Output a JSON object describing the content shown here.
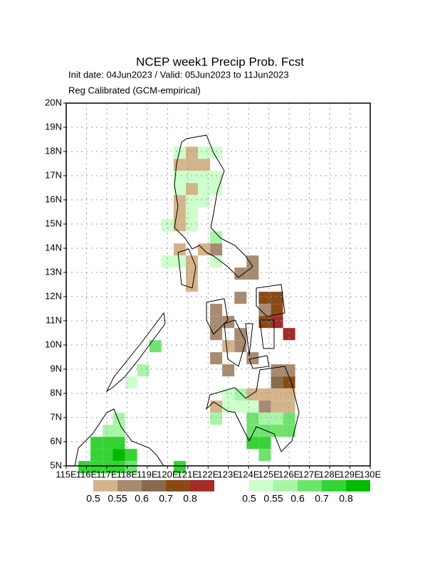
{
  "chart_data": {
    "type": "grid-map",
    "title": "NCEP week1 Precip Prob. Fcst",
    "subtitle": "Init date: 04Jun2023 / Valid: 05Jun2023 to 11Jun2023",
    "subtitle2": "Reg Calibrated (GCM-empirical)",
    "xlim": [
      115,
      130
    ],
    "ylim": [
      5,
      20
    ],
    "xticks": [
      {
        "value": 115,
        "label": "115E"
      },
      {
        "value": 116,
        "label": "116E"
      },
      {
        "value": 117,
        "label": "117E"
      },
      {
        "value": 118,
        "label": "118E"
      },
      {
        "value": 119,
        "label": "119E"
      },
      {
        "value": 120,
        "label": "120E"
      },
      {
        "value": 121,
        "label": "121E"
      },
      {
        "value": 122,
        "label": "122E"
      },
      {
        "value": 123,
        "label": "123E"
      },
      {
        "value": 124,
        "label": "124E"
      },
      {
        "value": 125,
        "label": "125E"
      },
      {
        "value": 126,
        "label": "126E"
      },
      {
        "value": 127,
        "label": "127E"
      },
      {
        "value": 128,
        "label": "128E"
      },
      {
        "value": 129,
        "label": "129E"
      },
      {
        "value": 130,
        "label": "130E"
      }
    ],
    "yticks": [
      {
        "value": 5,
        "label": "5N"
      },
      {
        "value": 6,
        "label": "6N"
      },
      {
        "value": 7,
        "label": "7N"
      },
      {
        "value": 8,
        "label": "8N"
      },
      {
        "value": 9,
        "label": "9N"
      },
      {
        "value": 10,
        "label": "10N"
      },
      {
        "value": 11,
        "label": "11N"
      },
      {
        "value": 12,
        "label": "12N"
      },
      {
        "value": 13,
        "label": "13N"
      },
      {
        "value": 14,
        "label": "14N"
      },
      {
        "value": 15,
        "label": "15N"
      },
      {
        "value": 16,
        "label": "16N"
      },
      {
        "value": 17,
        "label": "17N"
      },
      {
        "value": 18,
        "label": "18N"
      },
      {
        "value": 19,
        "label": "19N"
      },
      {
        "value": 20,
        "label": "20N"
      }
    ],
    "grid": true,
    "levels": [
      0.5,
      0.55,
      0.6,
      0.7,
      0.8
    ],
    "below_colors": [
      "#d4b48a",
      "#a88a70",
      "#8a6a4c",
      "#8a4a14",
      "#a52a2a"
    ],
    "above_colors": [
      "#ccffcc",
      "#a8f5a8",
      "#6ee46e",
      "#33d433",
      "#00bb00"
    ],
    "below_cells": [
      [
        120.9,
        18.2,
        0.5
      ],
      [
        120.3,
        17.7,
        0.5
      ],
      [
        120.9,
        17.7,
        0.5
      ],
      [
        121.5,
        17.7,
        0.5
      ],
      [
        120.9,
        16.7,
        0.5
      ],
      [
        120.3,
        16.2,
        0.5
      ],
      [
        120.3,
        15.7,
        0.5
      ],
      [
        120.3,
        15.2,
        0.5
      ],
      [
        120.3,
        14.2,
        0.5
      ],
      [
        120.9,
        13.7,
        0.5
      ],
      [
        121.5,
        14.2,
        0.5
      ],
      [
        120.9,
        13.2,
        0.5
      ],
      [
        120.9,
        12.7,
        0.5
      ],
      [
        122.1,
        14.2,
        0.55
      ],
      [
        123.9,
        13.7,
        0.55
      ],
      [
        123.9,
        13.2,
        0.55
      ],
      [
        123.3,
        13.2,
        0.55
      ],
      [
        123.3,
        12.2,
        0.55
      ],
      [
        124.5,
        12.2,
        0.7
      ],
      [
        125.1,
        12.2,
        0.7
      ],
      [
        124.5,
        11.7,
        0.55
      ],
      [
        125.1,
        11.7,
        0.7
      ],
      [
        124.5,
        11.2,
        0.7
      ],
      [
        125.1,
        11.2,
        0.8
      ],
      [
        125.7,
        10.7,
        0.8
      ],
      [
        122.1,
        11.7,
        0.55
      ],
      [
        122.1,
        11.2,
        0.55
      ],
      [
        122.7,
        11.2,
        0.55
      ],
      [
        122.1,
        10.7,
        0.55
      ],
      [
        123.3,
        10.7,
        0.55
      ],
      [
        123.3,
        10.2,
        0.55
      ],
      [
        122.7,
        10.2,
        0.5
      ],
      [
        123.9,
        9.7,
        0.55
      ],
      [
        122.1,
        9.7,
        0.55
      ],
      [
        122.7,
        9.2,
        0.55
      ],
      [
        125.1,
        9.2,
        0.55
      ],
      [
        125.7,
        9.2,
        0.55
      ],
      [
        125.1,
        8.7,
        0.6
      ],
      [
        125.7,
        8.7,
        0.7
      ],
      [
        124.5,
        8.2,
        0.5
      ],
      [
        125.1,
        8.2,
        0.5
      ],
      [
        125.7,
        8.2,
        0.5
      ],
      [
        123.9,
        8.2,
        0.5
      ],
      [
        124.5,
        7.7,
        0.55
      ],
      [
        125.1,
        7.7,
        0.5
      ],
      [
        125.7,
        7.7,
        0.5
      ],
      [
        122.1,
        7.7,
        0.5
      ]
    ],
    "above_cells": [
      [
        120.3,
        18.2,
        0.5
      ],
      [
        121.5,
        18.2,
        0.5
      ],
      [
        122.1,
        18.2,
        0.5
      ],
      [
        120.3,
        17.2,
        0.5
      ],
      [
        120.9,
        17.2,
        0.5
      ],
      [
        121.5,
        17.2,
        0.5
      ],
      [
        122.1,
        17.2,
        0.5
      ],
      [
        120.3,
        16.7,
        0.5
      ],
      [
        121.5,
        16.7,
        0.5
      ],
      [
        122.1,
        16.7,
        0.5
      ],
      [
        120.9,
        16.2,
        0.5
      ],
      [
        121.5,
        16.2,
        0.5
      ],
      [
        120.9,
        15.7,
        0.5
      ],
      [
        119.7,
        15.2,
        0.5
      ],
      [
        120.9,
        15.2,
        0.5
      ],
      [
        122.1,
        14.7,
        0.55
      ],
      [
        119.7,
        13.7,
        0.5
      ],
      [
        120.3,
        13.7,
        0.5
      ],
      [
        122.1,
        13.7,
        0.5
      ],
      [
        119.1,
        10.2,
        0.6
      ],
      [
        118.5,
        9.2,
        0.55
      ],
      [
        117.9,
        8.7,
        0.5
      ],
      [
        122.7,
        8.2,
        0.5
      ],
      [
        123.3,
        8.2,
        0.55
      ],
      [
        122.7,
        7.7,
        0.5
      ],
      [
        123.3,
        7.7,
        0.5
      ],
      [
        123.9,
        7.7,
        0.5
      ],
      [
        122.1,
        7.2,
        0.55
      ],
      [
        123.9,
        7.2,
        0.6
      ],
      [
        124.5,
        7.2,
        0.55
      ],
      [
        125.1,
        7.2,
        0.55
      ],
      [
        123.9,
        6.7,
        0.6
      ],
      [
        124.5,
        6.7,
        0.6
      ],
      [
        125.1,
        6.7,
        0.6
      ],
      [
        125.7,
        7.2,
        0.6
      ],
      [
        125.7,
        6.7,
        0.6
      ],
      [
        123.9,
        6.2,
        0.7
      ],
      [
        124.5,
        6.2,
        0.7
      ],
      [
        124.5,
        5.7,
        0.6
      ],
      [
        117.3,
        7.2,
        0.55
      ],
      [
        116.8,
        6.7,
        0.55
      ],
      [
        117.3,
        6.7,
        0.55
      ],
      [
        116.2,
        6.2,
        0.7
      ],
      [
        116.8,
        6.2,
        0.7
      ],
      [
        117.3,
        6.2,
        0.7
      ],
      [
        116.2,
        5.7,
        0.7
      ],
      [
        116.8,
        5.7,
        0.7
      ],
      [
        117.3,
        5.7,
        0.8
      ],
      [
        117.9,
        5.7,
        0.7
      ],
      [
        115.6,
        5.2,
        0.7
      ],
      [
        116.2,
        5.2,
        0.7
      ],
      [
        116.8,
        5.2,
        0.7
      ],
      [
        117.3,
        5.2,
        0.7
      ],
      [
        117.9,
        5.2,
        0.6
      ],
      [
        120.3,
        5.2,
        0.7
      ]
    ]
  }
}
